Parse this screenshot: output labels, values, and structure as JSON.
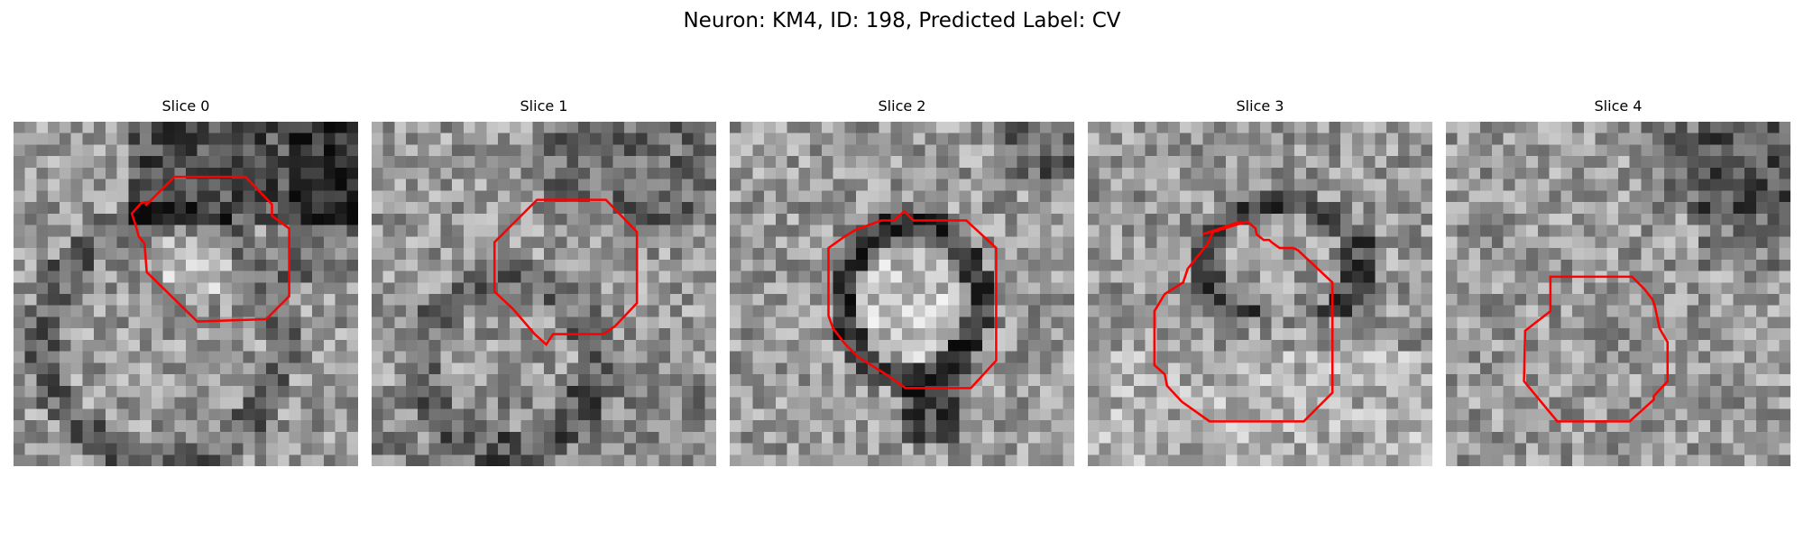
{
  "figure": {
    "title": "Neuron: KM4, ID: 198, Predicted Label: CV"
  },
  "outline_color": "#ff0000",
  "colormap": "gray",
  "panels": [
    {
      "title": "Slice 0"
    },
    {
      "title": "Slice 1"
    },
    {
      "title": "Slice 2"
    },
    {
      "title": "Slice 3"
    },
    {
      "title": "Slice 4"
    }
  ]
}
